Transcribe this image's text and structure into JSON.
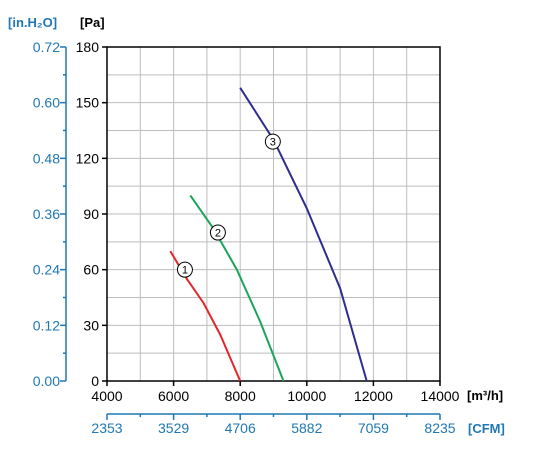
{
  "colors": {
    "primary_axis": "#000000",
    "secondary_axis": "#1f77b4",
    "grid": "#bdbdbd",
    "curve_1": "#e3262c",
    "curve_2": "#1aa55a",
    "curve_3": "#2e2e8c"
  },
  "chart_data": {
    "type": "line",
    "grid": true,
    "x_axis": {
      "unit_label": "[m³/h]",
      "range": [
        4000,
        14000
      ],
      "ticks": [
        "4000",
        "6000",
        "8000",
        "10000",
        "12000",
        "14000"
      ]
    },
    "x2_axis": {
      "unit_label": "[CFM]",
      "ticks": [
        "2353",
        "3529",
        "4706",
        "5882",
        "7059",
        "8235"
      ]
    },
    "y_axis": {
      "unit_label": "[Pa]",
      "range": [
        0,
        180
      ],
      "ticks": [
        "0",
        "30",
        "60",
        "90",
        "120",
        "150",
        "180"
      ]
    },
    "y2_axis": {
      "unit_label": "[in.H₂O]",
      "ticks": [
        "0.00",
        "0.12",
        "0.24",
        "0.36",
        "0.48",
        "0.60",
        "0.72"
      ]
    },
    "series": [
      {
        "marker": "1",
        "color": "#e3262c",
        "x": [
          5900,
          6400,
          6900,
          7400,
          8000
        ],
        "y": [
          70,
          55,
          42,
          25,
          0
        ],
        "marker_at": [
          6340,
          60
        ]
      },
      {
        "marker": "2",
        "color": "#1aa55a",
        "x": [
          6500,
          7200,
          7900,
          8600,
          9300
        ],
        "y": [
          100,
          82,
          60,
          32,
          0
        ],
        "marker_at": [
          7330,
          80
        ]
      },
      {
        "marker": "3",
        "color": "#2e2e8c",
        "x": [
          8000,
          9000,
          10000,
          11000,
          11800
        ],
        "y": [
          158,
          130,
          93,
          50,
          0
        ],
        "marker_at": [
          8980,
          129
        ]
      }
    ]
  }
}
